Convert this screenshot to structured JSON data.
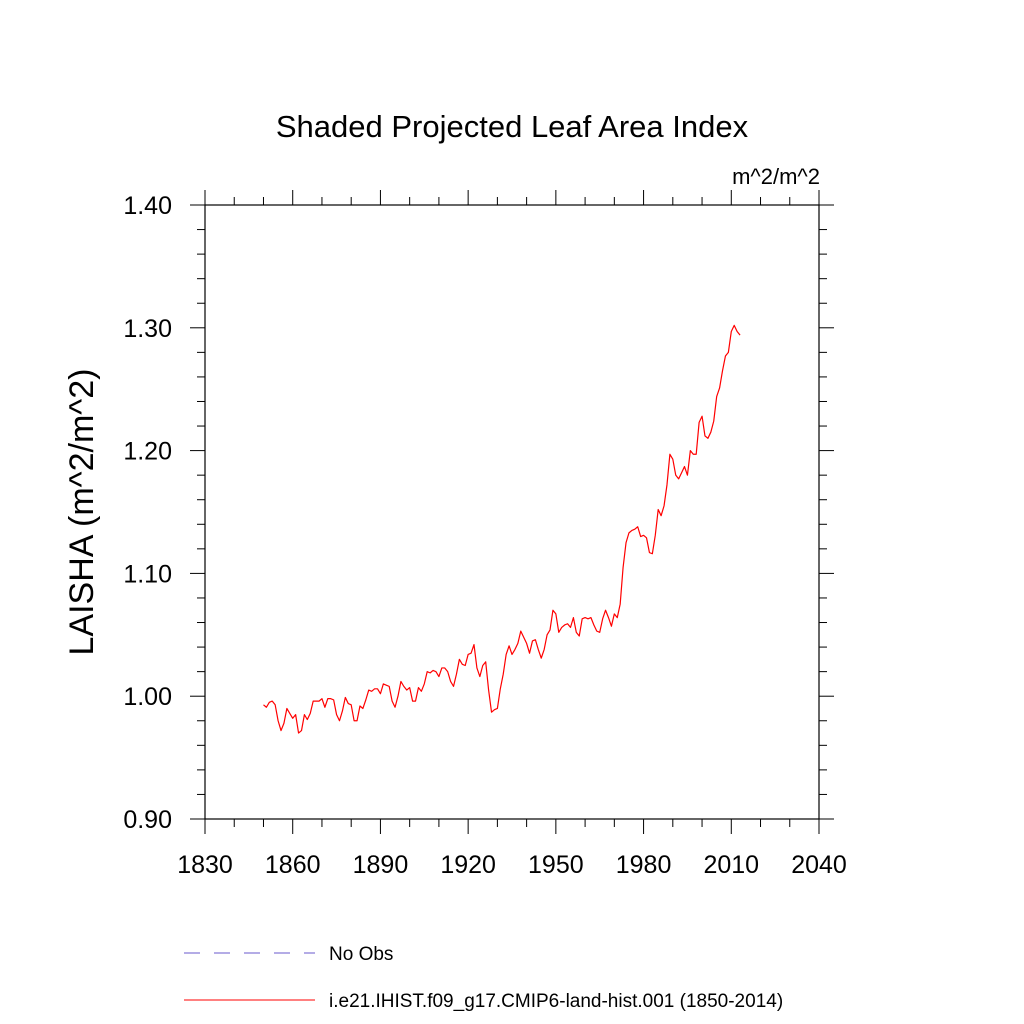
{
  "chart_data": {
    "type": "line",
    "title": "Shaded Projected Leaf Area Index",
    "units": "m^2/m^2",
    "ylabel": "LAISHA  (m^2/m^2)",
    "xlabel": "",
    "xlim": [
      1830,
      2040
    ],
    "ylim": [
      0.9,
      1.4
    ],
    "x_ticks": [
      1830,
      1860,
      1890,
      1920,
      1950,
      1980,
      2010,
      2040
    ],
    "x_tick_labels": [
      "1830",
      "1860",
      "1890",
      "1920",
      "1950",
      "1980",
      "2010",
      "2040"
    ],
    "y_ticks": [
      0.9,
      1.0,
      1.1,
      1.2,
      1.3,
      1.4
    ],
    "y_tick_labels": [
      "0.90",
      "1.00",
      "1.10",
      "1.20",
      "1.30",
      "1.40"
    ],
    "legend": [
      {
        "label": "No Obs",
        "color": "#6a5acd",
        "style": "dashed"
      },
      {
        "label": "i.e21.IHIST.f09_g17.CMIP6-land-hist.001 (1850-2014)",
        "color": "#ff0000",
        "style": "solid"
      }
    ],
    "series": [
      {
        "name": "i.e21.IHIST.f09_g17.CMIP6-land-hist.001 (1850-2014)",
        "color": "#ff0000",
        "x_start": 1850,
        "values": [
          0.993,
          0.991,
          0.995,
          0.996,
          0.993,
          0.98,
          0.972,
          0.978,
          0.99,
          0.986,
          0.982,
          0.985,
          0.97,
          0.972,
          0.985,
          0.981,
          0.986,
          0.996,
          0.996,
          0.996,
          0.998,
          0.991,
          0.998,
          0.998,
          0.997,
          0.985,
          0.98,
          0.988,
          0.999,
          0.994,
          0.993,
          0.98,
          0.98,
          0.992,
          0.99,
          0.997,
          1.005,
          1.004,
          1.006,
          1.006,
          1.002,
          1.01,
          1.009,
          1.008,
          0.996,
          0.991,
          1.0,
          1.012,
          1.008,
          1.005,
          1.007,
          0.996,
          0.996,
          1.007,
          1.004,
          1.01,
          1.02,
          1.019,
          1.021,
          1.02,
          1.016,
          1.023,
          1.023,
          1.02,
          1.012,
          1.008,
          1.018,
          1.03,
          1.026,
          1.025,
          1.034,
          1.035,
          1.042,
          1.023,
          1.016,
          1.025,
          1.028,
          1.005,
          0.987,
          0.989,
          0.99,
          1.006,
          1.018,
          1.034,
          1.041,
          1.034,
          1.038,
          1.043,
          1.053,
          1.048,
          1.043,
          1.035,
          1.045,
          1.046,
          1.038,
          1.031,
          1.038,
          1.05,
          1.054,
          1.07,
          1.067,
          1.052,
          1.056,
          1.058,
          1.059,
          1.056,
          1.064,
          1.052,
          1.049,
          1.063,
          1.064,
          1.063,
          1.064,
          1.058,
          1.053,
          1.052,
          1.063,
          1.07,
          1.064,
          1.057,
          1.067,
          1.064,
          1.075,
          1.105,
          1.125,
          1.133,
          1.135,
          1.136,
          1.138,
          1.13,
          1.131,
          1.129,
          1.117,
          1.116,
          1.131,
          1.152,
          1.147,
          1.155,
          1.172,
          1.197,
          1.193,
          1.18,
          1.177,
          1.182,
          1.187,
          1.18,
          1.2,
          1.197,
          1.197,
          1.223,
          1.228,
          1.212,
          1.21,
          1.215,
          1.224,
          1.244,
          1.251,
          1.265,
          1.277,
          1.28,
          1.297,
          1.302,
          1.297,
          1.294
        ]
      }
    ]
  }
}
